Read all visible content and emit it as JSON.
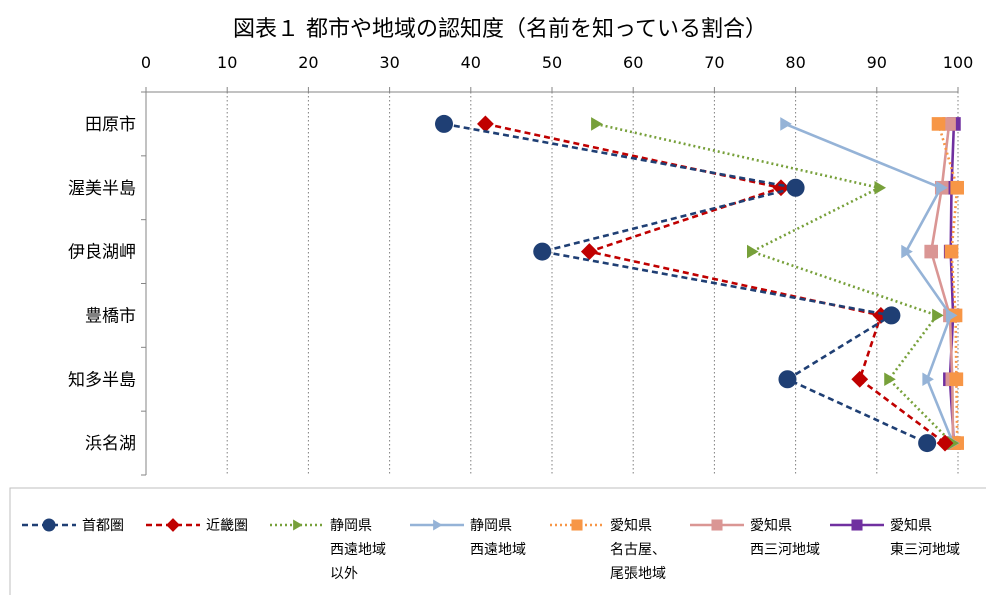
{
  "chart_data": {
    "type": "line",
    "title": "図表１ 都市や地域の認知度（名前を知っている割合）",
    "x_axis": {
      "min": 0,
      "max": 100,
      "ticks": [
        0,
        10,
        20,
        30,
        40,
        50,
        60,
        70,
        80,
        90,
        100
      ],
      "position": "top",
      "grid": "dotted"
    },
    "categories": [
      "田原市",
      "渥美半島",
      "伊良湖岬",
      "豊橋市",
      "知多半島",
      "浜名湖"
    ],
    "series": [
      {
        "name": "首都圏",
        "legend_lines": [
          "首都圏"
        ],
        "color": "#1f3f74",
        "dash": "dashed",
        "marker": "circle",
        "values": [
          36.7,
          80.0,
          48.8,
          91.8,
          79.0,
          96.2
        ]
      },
      {
        "name": "近畿圏",
        "legend_lines": [
          "近畿圏"
        ],
        "color": "#c00000",
        "dash": "dashed",
        "marker": "diamond",
        "values": [
          41.8,
          78.2,
          54.6,
          90.5,
          87.9,
          98.4
        ]
      },
      {
        "name": "静岡県西遠地域以外",
        "legend_lines": [
          "静岡県",
          "西遠地域",
          "以外"
        ],
        "color": "#77a03a",
        "dash": "dotted",
        "marker": "triangle",
        "values": [
          55.4,
          90.3,
          74.6,
          97.4,
          91.5,
          99.3
        ]
      },
      {
        "name": "静岡県西遠地域",
        "legend_lines": [
          "静岡県",
          "西遠地域"
        ],
        "color": "#95b3d7",
        "dash": "solid",
        "marker": "triangle",
        "values": [
          78.7,
          97.9,
          93.6,
          99.1,
          96.2,
          99.4
        ]
      },
      {
        "name": "愛知県名古屋、尾張地域",
        "legend_lines": [
          "愛知県",
          "名古屋、",
          "尾張地域"
        ],
        "color": "#f79646",
        "dash": "dotted",
        "marker": "square",
        "values": [
          97.6,
          99.9,
          99.2,
          99.7,
          99.8,
          99.9
        ]
      },
      {
        "name": "愛知県西三河地域",
        "legend_lines": [
          "愛知県",
          "西三河地域"
        ],
        "color": "#da9694",
        "dash": "solid",
        "marker": "square",
        "values": [
          98.9,
          98.0,
          96.7,
          99.0,
          99.3,
          99.4
        ]
      },
      {
        "name": "愛知県東三河地域",
        "legend_lines": [
          "愛知県",
          "東三河地域"
        ],
        "color": "#7030a0",
        "dash": "solid",
        "marker": "square",
        "values": [
          99.5,
          99.2,
          99.1,
          99.4,
          99.0,
          99.5
        ]
      }
    ],
    "legend_position": "bottom"
  }
}
